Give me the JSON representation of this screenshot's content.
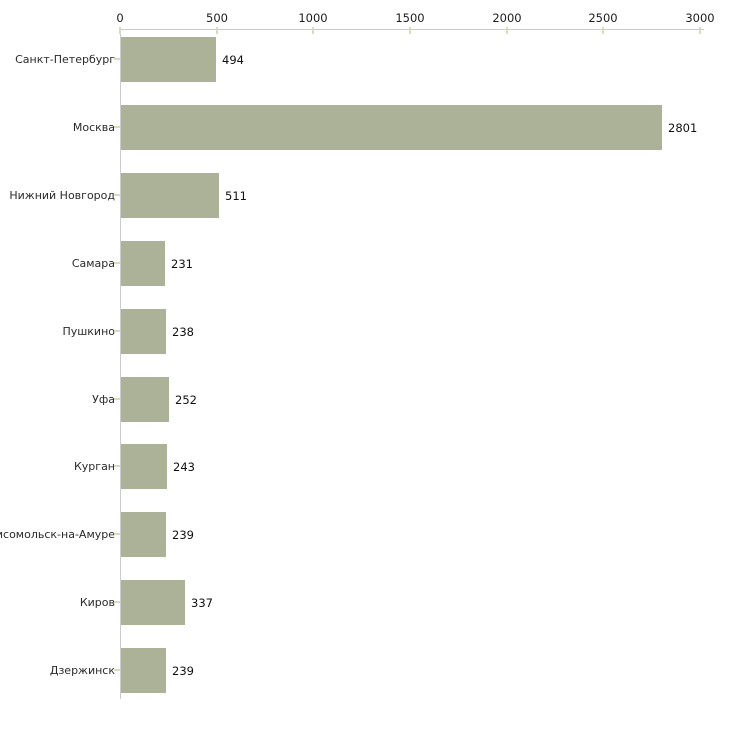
{
  "chart_data": {
    "type": "bar",
    "orientation": "horizontal",
    "title": "",
    "xlabel": "",
    "ylabel": "",
    "categories": [
      "Санкт-Петербург",
      "Москва",
      "Нижний Новгород",
      "Самара",
      "Пушкино",
      "Уфа",
      "Курган",
      "мсомольск-на-Амуре",
      "Киров",
      "Дзержинск"
    ],
    "values": [
      494,
      2801,
      511,
      231,
      238,
      252,
      243,
      239,
      337,
      239
    ],
    "value_labels_shown": true,
    "xlim": [
      0,
      3000
    ],
    "x_tick_values": [
      0,
      500,
      1000,
      1500,
      2000,
      2500,
      3000
    ],
    "x_tick_labels": [
      "0",
      "500",
      "1000",
      "1500",
      "2000",
      "2500",
      "3000"
    ],
    "x_axis_position": "top",
    "grid": false,
    "legend": "none",
    "colors": {
      "bar": "#abb297",
      "axis_line": "#cbcbcb",
      "tick_mark": "#d9dcba",
      "tick_label_text": "#1c1c1c",
      "category_text": "#2a2a2a",
      "value_text": "#111111",
      "background": "#ffffff"
    }
  }
}
